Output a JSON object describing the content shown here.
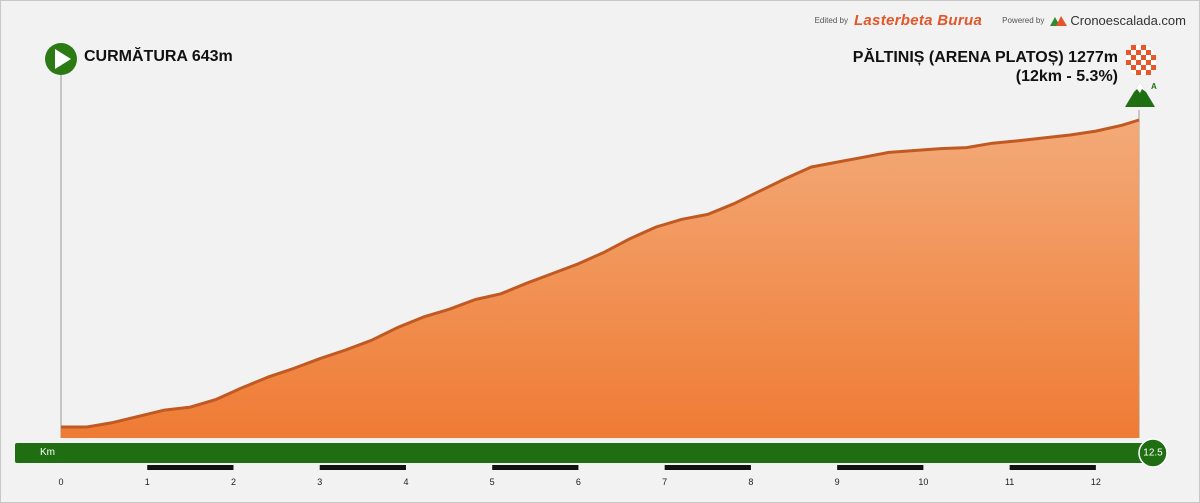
{
  "credits": {
    "edited_by": "Edited by",
    "editor": "Lasterbeta Burua",
    "powered_by": "Powered by",
    "brand": "Cronoescalada.com"
  },
  "start": {
    "label": "CURMĂTURA 643m"
  },
  "finish": {
    "label": "PĂLTINIȘ (ARENA PLATOȘ) 1277m",
    "sub": "(12km - 5.3%)",
    "category": "A"
  },
  "axis": {
    "unit": "Km",
    "end_value": "12.5"
  },
  "colors": {
    "fill_top": "#f3aa78",
    "fill_bottom": "#ef7b34",
    "ridge": "#c05a22",
    "bar": "#1f6f12",
    "start_icon": "#2c7a14"
  },
  "chart_data": {
    "type": "area",
    "title": "",
    "xlabel": "Km",
    "ylabel": "",
    "xlim": [
      0,
      12.5
    ],
    "ylim": [
      643,
      1277
    ],
    "x_ticks": [
      "0",
      "1",
      "2",
      "3",
      "4",
      "5",
      "6",
      "7",
      "8",
      "9",
      "10",
      "11",
      "12"
    ],
    "x": [
      0,
      0.3,
      0.6,
      0.9,
      1.2,
      1.5,
      1.8,
      2.1,
      2.4,
      2.7,
      3.0,
      3.3,
      3.6,
      3.9,
      4.2,
      4.5,
      4.8,
      5.1,
      5.4,
      5.7,
      6.0,
      6.3,
      6.6,
      6.9,
      7.2,
      7.5,
      7.8,
      8.1,
      8.4,
      8.7,
      9.0,
      9.3,
      9.6,
      9.9,
      10.2,
      10.5,
      10.8,
      11.1,
      11.4,
      11.7,
      12.0,
      12.3,
      12.5
    ],
    "series": [
      {
        "values": [
          643,
          643,
          652,
          665,
          678,
          684,
          700,
          724,
          746,
          764,
          784,
          802,
          822,
          848,
          870,
          886,
          906,
          918,
          940,
          960,
          980,
          1004,
          1032,
          1056,
          1072,
          1082,
          1104,
          1130,
          1156,
          1180,
          1190,
          1200,
          1210,
          1214,
          1218,
          1220,
          1229,
          1234,
          1240,
          1246,
          1254,
          1266,
          1277
        ]
      }
    ]
  }
}
